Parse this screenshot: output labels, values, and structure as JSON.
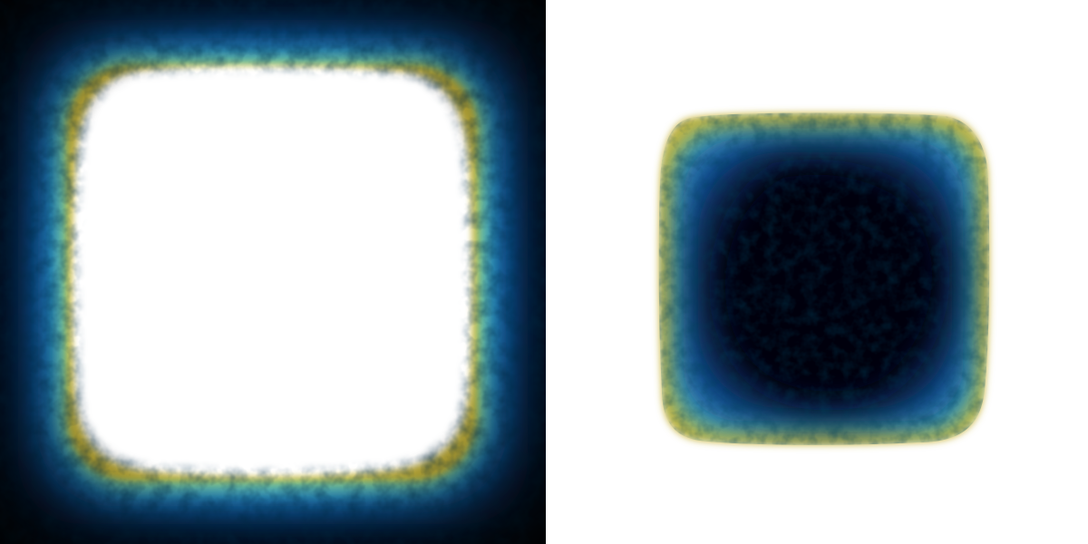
{
  "image": {
    "panels": [
      {
        "id": "left",
        "description_role": "outer-glow-frame",
        "background_color": "#03080f",
        "ring_colors": {
          "deep": "#0a2f6b",
          "mid": "#0b63b0",
          "bright": "#1e90c8",
          "cyan": "#5cc3c9",
          "green": "#8fc36e",
          "yellow": "#c7b53a"
        },
        "interior_color": "#ffffff"
      },
      {
        "id": "right",
        "description_role": "inner-dark-core",
        "background_color": "#ffffff",
        "ring_colors": {
          "edge": "#c9b53c",
          "green": "#8bbf6d",
          "cyan": "#3fa0c4",
          "blue": "#0d4f9a",
          "deep": "#0a2a5c",
          "core": "#03060b"
        }
      }
    ]
  }
}
